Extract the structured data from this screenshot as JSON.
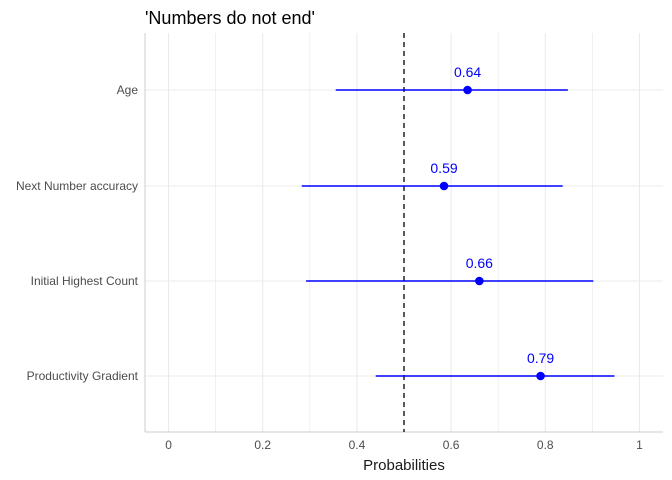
{
  "chart_data": {
    "type": "dot-and-whisker",
    "title": "'Numbers do not end'",
    "xlabel": "Probabilities",
    "ylabel": "",
    "xlim": [
      -0.05,
      1.05
    ],
    "x_ticks": [
      0,
      0.2,
      0.4,
      0.6,
      0.8,
      1
    ],
    "x_tick_labels": [
      "0",
      "0.2",
      "0.4",
      "0.6",
      "0.8",
      "1"
    ],
    "reference_line": 0.5,
    "grid": true,
    "categories": [
      "Age",
      "Next Number accuracy",
      "Initial Highest Count",
      "Productivity Gradient"
    ],
    "points": [
      {
        "label": "Age",
        "estimate": 0.635,
        "lower": 0.355,
        "upper": 0.848,
        "value_label": "0.64"
      },
      {
        "label": "Next Number accuracy",
        "estimate": 0.585,
        "lower": 0.283,
        "upper": 0.837,
        "value_label": "0.59"
      },
      {
        "label": "Initial Highest Count",
        "estimate": 0.66,
        "lower": 0.292,
        "upper": 0.902,
        "value_label": "0.66"
      },
      {
        "label": "Productivity Gradient",
        "estimate": 0.79,
        "lower": 0.44,
        "upper": 0.947,
        "value_label": "0.79"
      }
    ],
    "colors": {
      "series": "#0000ff",
      "grid": "#ebebeb",
      "axis": "#cccccc",
      "reference_line": "#000000"
    }
  }
}
